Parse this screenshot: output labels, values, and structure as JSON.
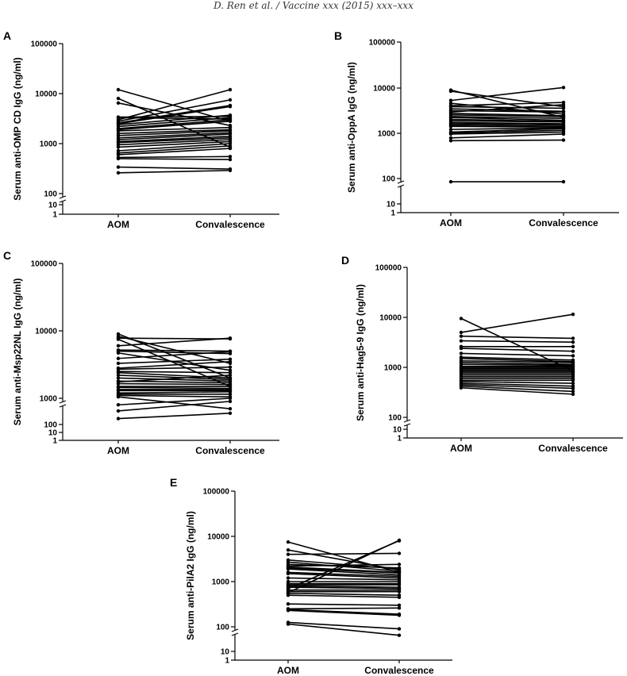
{
  "running_header": "D. Ren et al. / Vaccine xxx (2015) xxx–xxx",
  "chart_data": [
    {
      "panel": "A",
      "type": "line",
      "ylabel": "Serum anti-OMP CD IgG (ng/ml)",
      "categories": [
        "AOM",
        "Convalescence"
      ],
      "yscale": "log10 (broken axis)",
      "major_ticks": [
        "100000",
        "10000",
        "1000",
        "100"
      ],
      "minor_ticks": [
        "10",
        "1"
      ],
      "pairs": [
        [
          12000,
          2800
        ],
        [
          8000,
          850
        ],
        [
          6500,
          2300
        ],
        [
          3400,
          3500
        ],
        [
          3300,
          3100
        ],
        [
          3000,
          12000
        ],
        [
          2800,
          7500
        ],
        [
          2600,
          5800
        ],
        [
          2500,
          5500
        ],
        [
          2400,
          3700
        ],
        [
          2200,
          3300
        ],
        [
          2000,
          3000
        ],
        [
          1900,
          2800
        ],
        [
          1800,
          2100
        ],
        [
          1600,
          1900
        ],
        [
          1450,
          1800
        ],
        [
          1300,
          1650
        ],
        [
          1200,
          1550
        ],
        [
          1100,
          1400
        ],
        [
          1050,
          1300
        ],
        [
          950,
          1200
        ],
        [
          850,
          1100
        ],
        [
          720,
          1000
        ],
        [
          650,
          900
        ],
        [
          600,
          800
        ],
        [
          530,
          550
        ],
        [
          500,
          480
        ],
        [
          340,
          310
        ],
        [
          260,
          290
        ]
      ]
    },
    {
      "panel": "B",
      "type": "line",
      "ylabel": "Serum anti-OppA IgG (ng/ml)",
      "categories": [
        "AOM",
        "Convalescence"
      ],
      "yscale": "log10 (broken axis)",
      "major_ticks": [
        "100000",
        "10000",
        "1000",
        "100"
      ],
      "minor_ticks": [
        "10",
        "1"
      ],
      "pairs": [
        [
          8800,
          2200
        ],
        [
          8300,
          3800
        ],
        [
          5200,
          10000
        ],
        [
          4500,
          2600
        ],
        [
          4000,
          4700
        ],
        [
          3800,
          3500
        ],
        [
          3400,
          3000
        ],
        [
          3100,
          2900
        ],
        [
          2900,
          4200
        ],
        [
          2700,
          2400
        ],
        [
          2500,
          2300
        ],
        [
          2300,
          2100
        ],
        [
          2200,
          1900
        ],
        [
          2000,
          1800
        ],
        [
          1850,
          1750
        ],
        [
          1700,
          1600
        ],
        [
          1600,
          1500
        ],
        [
          1500,
          1400
        ],
        [
          1400,
          1350
        ],
        [
          1200,
          1300
        ],
        [
          1050,
          1250
        ],
        [
          1000,
          1150
        ],
        [
          950,
          1050
        ],
        [
          780,
          950
        ],
        [
          680,
          700
        ],
        [
          85,
          85
        ]
      ]
    },
    {
      "panel": "C",
      "type": "line",
      "ylabel": "Serum anti-Msp22NL IgG (ng/ml)",
      "categories": [
        "AOM",
        "Convalescence"
      ],
      "yscale": "log10 (broken axis)",
      "major_ticks": [
        "100000",
        "10000",
        "1000"
      ],
      "minor_ticks": [
        "100",
        "10",
        "1"
      ],
      "pairs": [
        [
          9000,
          2000
        ],
        [
          8300,
          3300
        ],
        [
          7800,
          7600
        ],
        [
          7500,
          1500
        ],
        [
          6000,
          7800
        ],
        [
          5200,
          5000
        ],
        [
          5000,
          4600
        ],
        [
          4700,
          2600
        ],
        [
          3900,
          4900
        ],
        [
          3300,
          3800
        ],
        [
          2800,
          3500
        ],
        [
          2700,
          2900
        ],
        [
          2500,
          2400
        ],
        [
          2400,
          2000
        ],
        [
          2200,
          1900
        ],
        [
          2000,
          1800
        ],
        [
          1800,
          1700
        ],
        [
          1750,
          2200
        ],
        [
          1650,
          1600
        ],
        [
          1500,
          1500
        ],
        [
          1450,
          1400
        ],
        [
          1350,
          1350
        ],
        [
          1300,
          1300
        ],
        [
          1200,
          1250
        ],
        [
          1150,
          1150
        ],
        [
          1100,
          1050
        ],
        [
          1050,
          700
        ],
        [
          800,
          1000
        ],
        [
          650,
          900
        ],
        [
          500,
          600
        ]
      ]
    },
    {
      "panel": "D",
      "type": "line",
      "ylabel": "Serum anti-Hag5-9 IgG (ng/ml)",
      "categories": [
        "AOM",
        "Convalescence"
      ],
      "yscale": "log10 (broken axis)",
      "major_ticks": [
        "100000",
        "10000",
        "1000",
        "100"
      ],
      "minor_ticks": [
        "10",
        "1"
      ],
      "pairs": [
        [
          9500,
          850
        ],
        [
          5000,
          11500
        ],
        [
          4200,
          3800
        ],
        [
          3400,
          3200
        ],
        [
          2600,
          2600
        ],
        [
          2400,
          2100
        ],
        [
          1900,
          1700
        ],
        [
          1600,
          1400
        ],
        [
          1500,
          1300
        ],
        [
          1350,
          1250
        ],
        [
          1250,
          1150
        ],
        [
          1150,
          1100
        ],
        [
          1050,
          1050
        ],
        [
          1000,
          1000
        ],
        [
          950,
          950
        ],
        [
          900,
          900
        ],
        [
          850,
          850
        ],
        [
          800,
          800
        ],
        [
          750,
          750
        ],
        [
          700,
          700
        ],
        [
          650,
          650
        ],
        [
          600,
          600
        ],
        [
          550,
          550
        ],
        [
          520,
          480
        ],
        [
          480,
          420
        ],
        [
          450,
          380
        ],
        [
          420,
          330
        ],
        [
          390,
          290
        ]
      ]
    },
    {
      "panel": "E",
      "type": "line",
      "ylabel": "Serum anti-PilA2 IgG (ng/ml)",
      "categories": [
        "AOM",
        "Convalescence"
      ],
      "yscale": "log10 (broken axis)",
      "major_ticks": [
        "100000",
        "10000",
        "1000",
        "100"
      ],
      "minor_ticks": [
        "10",
        "1"
      ],
      "pairs": [
        [
          7500,
          1600
        ],
        [
          5000,
          1800
        ],
        [
          4000,
          4200
        ],
        [
          3000,
          1900
        ],
        [
          2700,
          1700
        ],
        [
          2400,
          2000
        ],
        [
          2200,
          2400
        ],
        [
          2100,
          1600
        ],
        [
          2000,
          1550
        ],
        [
          1900,
          1400
        ],
        [
          1600,
          1300
        ],
        [
          1500,
          1200
        ],
        [
          1200,
          1100
        ],
        [
          1000,
          1000
        ],
        [
          900,
          900
        ],
        [
          850,
          850
        ],
        [
          800,
          750
        ],
        [
          750,
          700
        ],
        [
          700,
          8000
        ],
        [
          650,
          650
        ],
        [
          600,
          600
        ],
        [
          570,
          8200
        ],
        [
          550,
          500
        ],
        [
          500,
          450
        ],
        [
          320,
          300
        ],
        [
          250,
          260
        ],
        [
          240,
          190
        ],
        [
          230,
          180
        ],
        [
          125,
          90
        ],
        [
          115,
          65
        ]
      ]
    }
  ]
}
